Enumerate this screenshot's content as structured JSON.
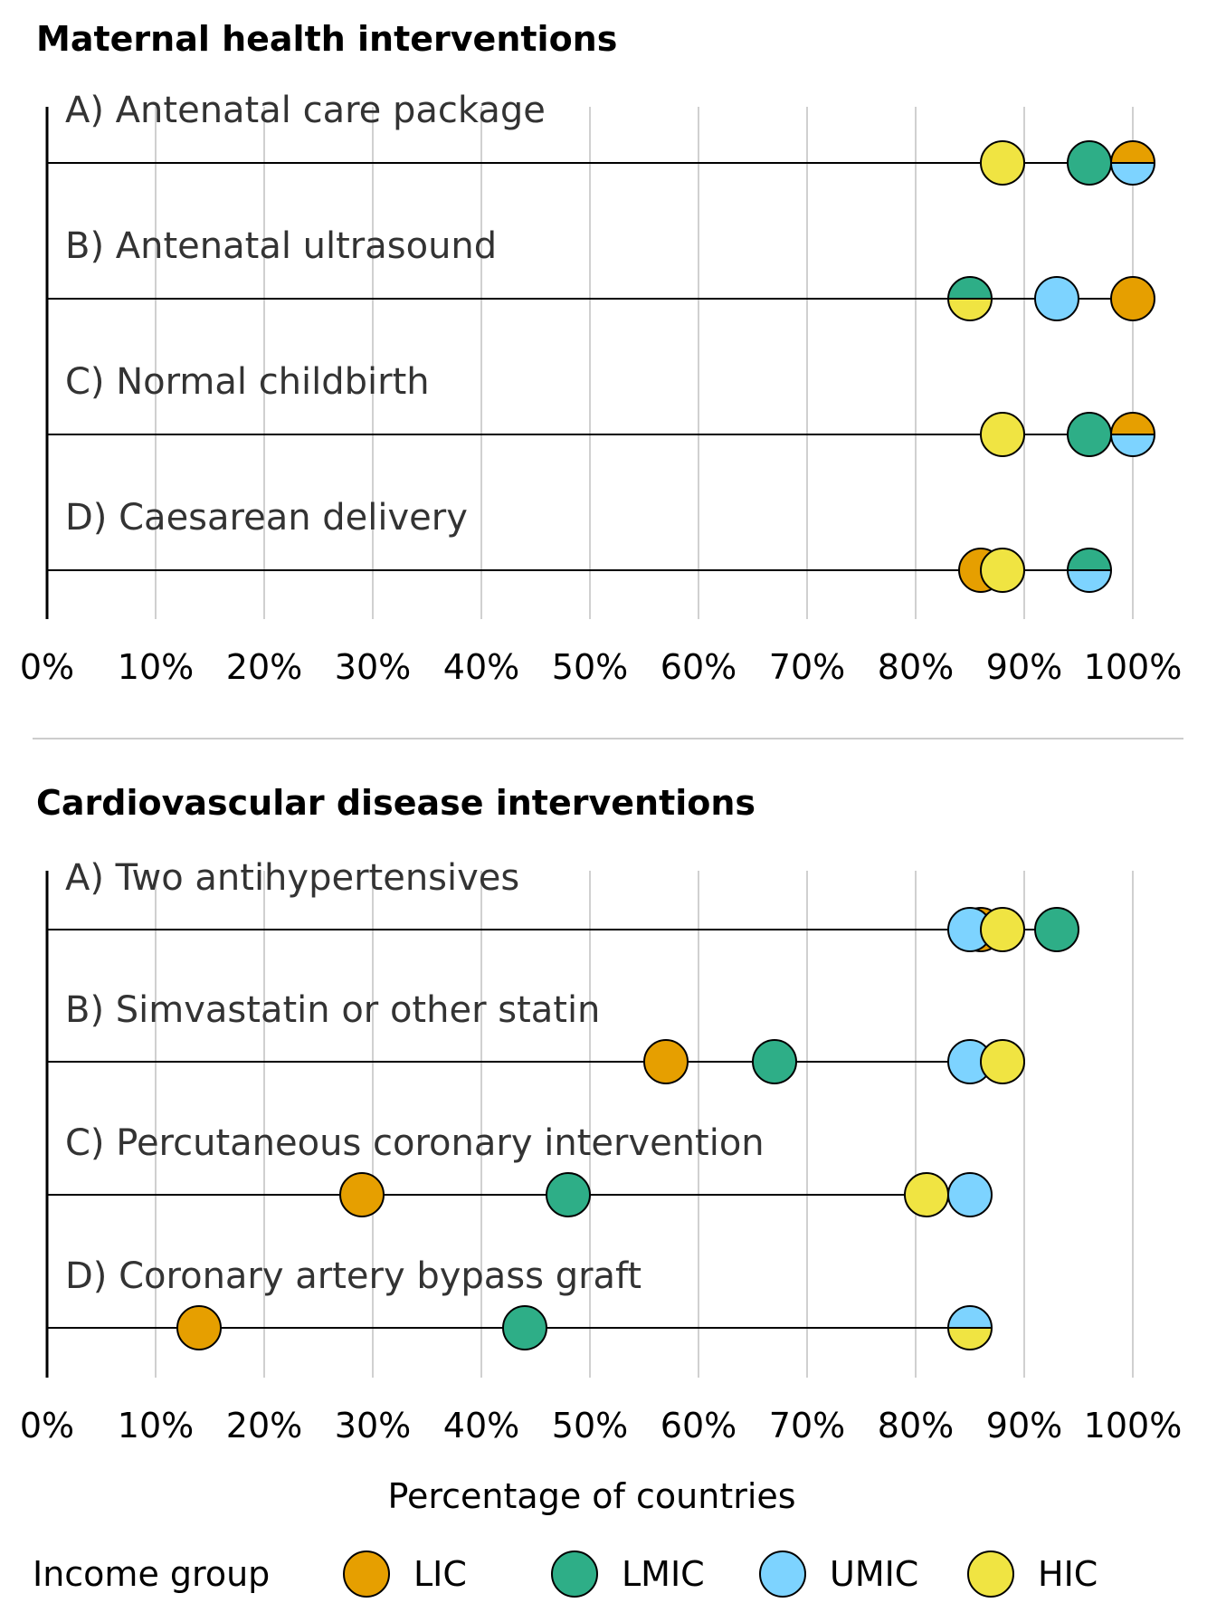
{
  "colors": {
    "LIC": "#E69F00",
    "LMIC": "#2EAE87",
    "UMIC": "#7DD3FF",
    "HIC": "#F0E442",
    "grid": "#d0d0d0",
    "line": "#000000"
  },
  "chart_data": [
    {
      "type": "scatter",
      "title": "Maternal health interventions",
      "xlim": [
        0,
        100
      ],
      "x_ticks": [
        "0%",
        "10%",
        "20%",
        "30%",
        "40%",
        "50%",
        "60%",
        "70%",
        "80%",
        "90%",
        "100%"
      ],
      "grid": true,
      "rows": [
        {
          "label": "A) Antenatal care package",
          "values": {
            "LIC": 100,
            "LMIC": 96,
            "UMIC": 100,
            "HIC": 88
          }
        },
        {
          "label": "B) Antenatal ultrasound",
          "values": {
            "LIC": 100,
            "LMIC": 85,
            "UMIC": 93,
            "HIC": 85
          }
        },
        {
          "label": "C) Normal childbirth",
          "values": {
            "LIC": 100,
            "LMIC": 96,
            "UMIC": 100,
            "HIC": 88
          }
        },
        {
          "label": "D) Caesarean delivery",
          "values": {
            "LIC": 86,
            "LMIC": 96,
            "UMIC": 96,
            "HIC": 88
          }
        }
      ]
    },
    {
      "type": "scatter",
      "title": "Cardiovascular disease interventions",
      "xlim": [
        0,
        100
      ],
      "x_ticks": [
        "0%",
        "10%",
        "20%",
        "30%",
        "40%",
        "50%",
        "60%",
        "70%",
        "80%",
        "90%",
        "100%"
      ],
      "xlabel": "Percentage of countries",
      "grid": true,
      "rows": [
        {
          "label": "A) Two antihypertensives",
          "values": {
            "LIC": 86,
            "LMIC": 93,
            "UMIC": 85,
            "HIC": 88
          }
        },
        {
          "label": "B) Simvastatin or other statin",
          "values": {
            "LIC": 57,
            "LMIC": 67,
            "UMIC": 85,
            "HIC": 88
          }
        },
        {
          "label": "C) Percutaneous coronary intervention",
          "values": {
            "LIC": 29,
            "LMIC": 48,
            "UMIC": 85,
            "HIC": 81
          }
        },
        {
          "label": "D) Coronary artery bypass graft",
          "values": {
            "LIC": 14,
            "LMIC": 44,
            "UMIC": 85,
            "HIC": 85
          }
        }
      ]
    }
  ],
  "legend": {
    "title": "Income group",
    "placement": "bottom",
    "items": [
      "LIC",
      "LMIC",
      "UMIC",
      "HIC"
    ]
  }
}
